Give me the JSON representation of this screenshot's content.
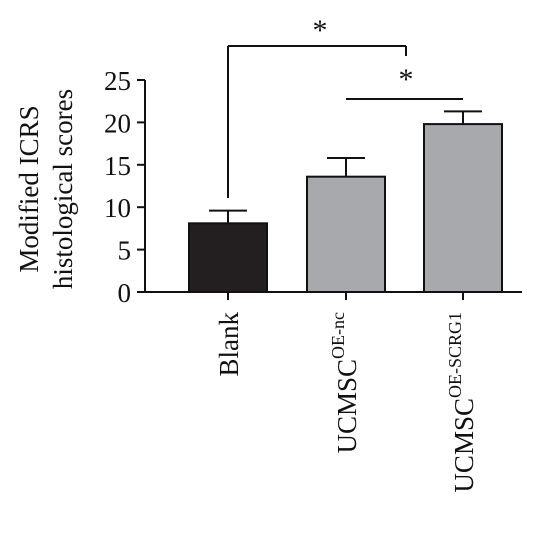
{
  "chart_data": {
    "type": "bar",
    "categories": [
      "Blank",
      "UCMSC",
      "UCMSC"
    ],
    "category_superscripts": [
      "",
      "OE-nc",
      "OE-SCRG1"
    ],
    "values": [
      8.1,
      13.6,
      19.8
    ],
    "error_bars": [
      1.5,
      2.2,
      1.5
    ],
    "bar_colors": [
      "#231f20",
      "#a7a9ac",
      "#a7a9ac"
    ],
    "ylabel_line1": "Modified ICRS",
    "ylabel_line2": "histological scores",
    "xlabel": "",
    "title": "",
    "ylim": [
      0,
      25
    ],
    "yticks": [
      0,
      5,
      10,
      15,
      20,
      25
    ],
    "significance": [
      {
        "from": 0,
        "to": 2,
        "label": "*"
      },
      {
        "from": 1,
        "to": 2,
        "label": "*"
      }
    ],
    "grid": false,
    "legend": "none"
  }
}
